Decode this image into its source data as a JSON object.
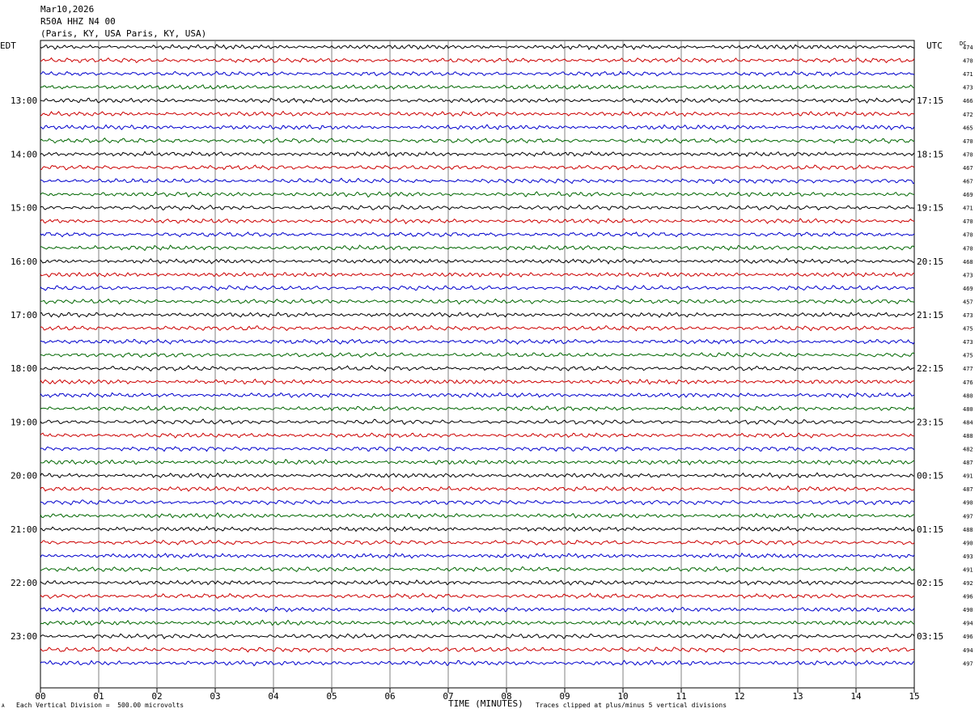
{
  "header": {
    "date": "Mar10,2026",
    "station": "R50A HHZ N4 00",
    "location": "(Paris, KY, USA Paris, KY, USA)"
  },
  "labels": {
    "left_tz": "EDT",
    "right_tz": "UTC",
    "dc": "DC",
    "xlabel": "TIME (MINUTES)",
    "scale_note": "Each Vertical Division =  500.00 microvolts",
    "clip_note": "Traces clipped at plus/minus 5 vertical divisions",
    "corner_mark": "A"
  },
  "colors": {
    "trace_cycle": [
      "#000000",
      "#cc0000",
      "#0000cc",
      "#006600"
    ],
    "grid": "#808080"
  },
  "chart_data": {
    "type": "line",
    "title": "",
    "xlabel": "TIME (MINUTES)",
    "xlim": [
      0,
      15
    ],
    "xticks": [
      "00",
      "01",
      "02",
      "03",
      "04",
      "05",
      "06",
      "07",
      "08",
      "09",
      "10",
      "11",
      "12",
      "13",
      "14",
      "15"
    ],
    "traces_per_hour": 4,
    "left_hour_labels": [
      "13:00",
      "14:00",
      "15:00",
      "16:00",
      "17:00",
      "18:00",
      "19:00",
      "20:00",
      "21:00",
      "22:00",
      "23:00"
    ],
    "right_hour_labels": [
      "17:15",
      "18:15",
      "19:15",
      "20:15",
      "21:15",
      "22:15",
      "23:15",
      "00:15",
      "01:15",
      "02:15",
      "03:15"
    ],
    "dc_offsets": [
      474,
      470,
      471,
      473,
      466,
      472,
      465,
      470,
      470,
      467,
      467,
      469,
      471,
      470,
      470,
      470,
      468,
      473,
      469,
      457,
      473,
      475,
      473,
      475,
      477,
      476,
      480,
      480,
      484,
      488,
      482,
      487,
      491,
      487,
      490,
      497,
      488,
      490,
      493,
      491,
      492,
      496,
      490,
      494,
      496,
      494,
      497
    ]
  }
}
